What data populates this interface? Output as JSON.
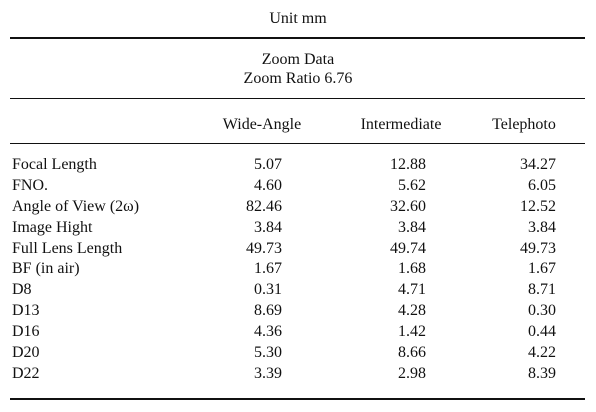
{
  "table": {
    "unit": "Unit mm",
    "title": "Zoom Data",
    "zoom_ratio": "Zoom Ratio 6.76",
    "columns": [
      "Wide-Angle",
      "Intermediate",
      "Telephoto"
    ],
    "rows": [
      {
        "label": "Focal Length",
        "values": [
          "5.07",
          "12.88",
          "34.27"
        ]
      },
      {
        "label": "FNO.",
        "values": [
          "4.60",
          "5.62",
          "6.05"
        ]
      },
      {
        "label": "Angle of View (2ω)",
        "values": [
          "82.46",
          "32.60",
          "12.52"
        ]
      },
      {
        "label": "Image Hight",
        "values": [
          "3.84",
          "3.84",
          "3.84"
        ]
      },
      {
        "label": "Full Lens Length",
        "values": [
          "49.73",
          "49.74",
          "49.73"
        ]
      },
      {
        "label": "BF (in air)",
        "values": [
          "1.67",
          "1.68",
          "1.67"
        ]
      },
      {
        "label": "D8",
        "values": [
          "0.31",
          "4.71",
          "8.71"
        ]
      },
      {
        "label": "D13",
        "values": [
          "8.69",
          "4.28",
          "0.30"
        ]
      },
      {
        "label": "D16",
        "values": [
          "4.36",
          "1.42",
          "0.44"
        ]
      },
      {
        "label": "D20",
        "values": [
          "5.30",
          "8.66",
          "4.22"
        ]
      },
      {
        "label": "D22",
        "values": [
          "3.39",
          "2.98",
          "8.39"
        ]
      }
    ]
  }
}
